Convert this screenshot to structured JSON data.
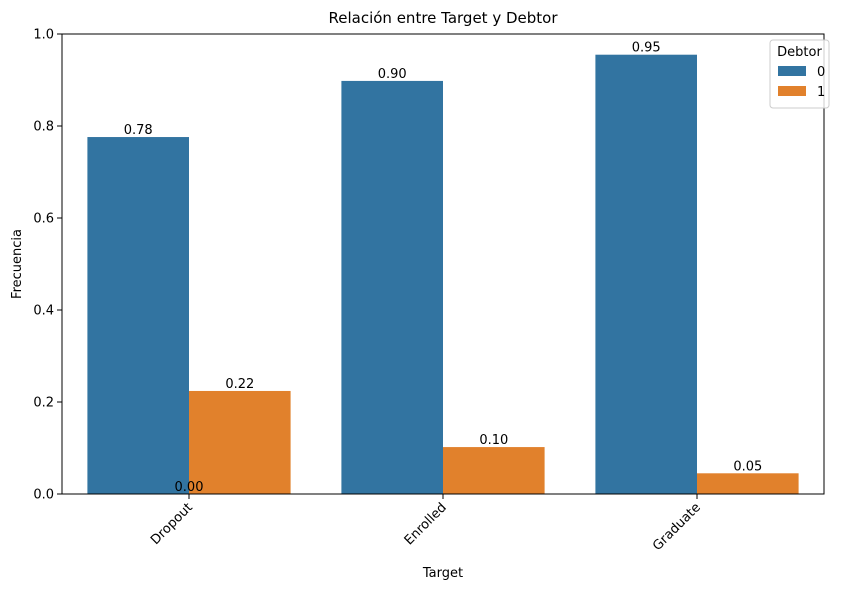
{
  "chart_data": {
    "type": "bar",
    "title": "Relación entre Target y Debtor",
    "xlabel": "Target",
    "ylabel": "Frecuencia",
    "categories": [
      "Dropout",
      "Enrolled",
      "Graduate"
    ],
    "series": [
      {
        "name": "0",
        "values": [
          0.776,
          0.898,
          0.955
        ],
        "labels": [
          "0.78",
          "0.90",
          "0.95"
        ],
        "color": "#3274a1"
      },
      {
        "name": "1",
        "values": [
          0.224,
          0.102,
          0.045
        ],
        "labels": [
          "0.22",
          "0.10",
          "0.05"
        ],
        "color": "#e1812c"
      }
    ],
    "extra_label": "0.00",
    "ylim": [
      0,
      1.0
    ],
    "yticks": [
      0.0,
      0.2,
      0.4,
      0.6,
      0.8,
      1.0
    ],
    "ytick_labels": [
      "0.0",
      "0.2",
      "0.4",
      "0.6",
      "0.8",
      "1.0"
    ],
    "legend": {
      "title": "Debtor",
      "placement": "top-right"
    },
    "grid": false
  }
}
